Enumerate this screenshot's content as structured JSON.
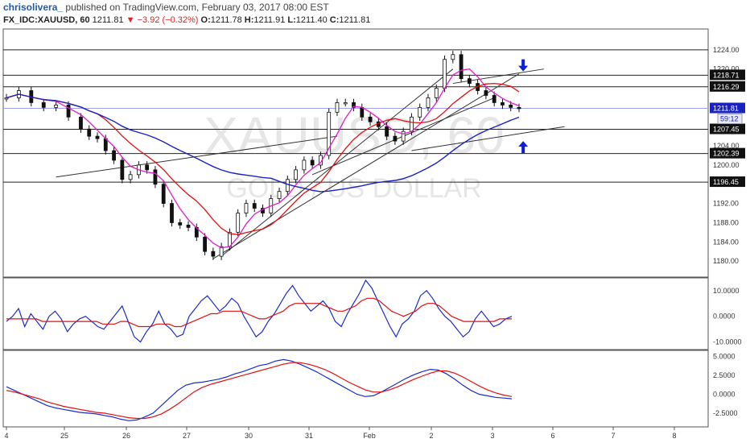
{
  "header": {
    "author": "chrisolivera_",
    "published": "published on TradingView.com, February 03, 2017 08:00 EST",
    "symbol": "FX_IDC:XAUUSD, 60",
    "last": "1211.81",
    "change_arrow": "▼",
    "change": "−3.92 (−0.32%)",
    "o_label": "O:",
    "o": "1211.78",
    "h_label": "H:",
    "h": "1211.91",
    "l_label": "L:",
    "l": "1211.40",
    "c_label": "C:",
    "c": "1211.81"
  },
  "watermark": {
    "line1": "XAUUSD, 60",
    "line2": "GOLD / US DOLLAR"
  },
  "colors": {
    "candle": "#111111",
    "ma_red": "#e01010",
    "ma_pink": "#e01cc8",
    "ma_blue": "#1a22c0",
    "arrow": "#0a1fd6",
    "last_bg": "#1a22c0",
    "timer_bg": "#e8eaf6",
    "rsi_blue": "#1b2ccc",
    "rsi_red": "#e01010"
  },
  "chart_data": [
    {
      "type": "line",
      "name": "price",
      "title": "FX_IDC:XAUUSD, 60",
      "xlabel": "",
      "ylabel": "",
      "x_ticks": [
        "4",
        "25",
        "26",
        "27",
        "30",
        "31",
        "Feb",
        "2",
        "3",
        "6",
        "7",
        "8"
      ],
      "ylim": [
        1177,
        1228
      ],
      "y_ticks": [
        "1224.00",
        "1220.00",
        "1216.00",
        "1212.00",
        "1208.00",
        "1204.00",
        "1200.00",
        "1196.00",
        "1192.00",
        "1188.00",
        "1184.00",
        "1180.00"
      ],
      "price_path": [
        [
          0,
          1214
        ],
        [
          3,
          1215.5
        ],
        [
          6,
          1213
        ],
        [
          9,
          1212
        ],
        [
          12,
          1212.5
        ],
        [
          15,
          1210
        ],
        [
          18,
          1207.5
        ],
        [
          20,
          1206
        ],
        [
          22,
          1205.5
        ],
        [
          24,
          1203
        ],
        [
          26,
          1201
        ],
        [
          28,
          1197
        ],
        [
          30,
          1198
        ],
        [
          32,
          1200
        ],
        [
          34,
          1199
        ],
        [
          36,
          1196
        ],
        [
          38,
          1192
        ],
        [
          40,
          1188
        ],
        [
          42,
          1187.5
        ],
        [
          44,
          1187
        ],
        [
          46,
          1185
        ],
        [
          48,
          1182
        ],
        [
          50,
          1181
        ],
        [
          52,
          1183
        ],
        [
          54,
          1186
        ],
        [
          56,
          1190
        ],
        [
          58,
          1192
        ],
        [
          60,
          1191
        ],
        [
          62,
          1190
        ],
        [
          64,
          1193
        ],
        [
          66,
          1194.5
        ],
        [
          68,
          1197
        ],
        [
          70,
          1199
        ],
        [
          72,
          1201
        ],
        [
          74,
          1200
        ],
        [
          76,
          1202
        ],
        [
          78,
          1211
        ],
        [
          80,
          1213
        ],
        [
          82,
          1213
        ],
        [
          84,
          1212
        ],
        [
          86,
          1210
        ],
        [
          88,
          1209
        ],
        [
          90,
          1208
        ],
        [
          92,
          1206
        ],
        [
          94,
          1205
        ],
        [
          96,
          1207
        ],
        [
          98,
          1210
        ],
        [
          100,
          1212
        ],
        [
          102,
          1214
        ],
        [
          104,
          1216
        ],
        [
          106,
          1222
        ],
        [
          108,
          1223
        ],
        [
          110,
          1218
        ],
        [
          112,
          1217
        ],
        [
          114,
          1215.5
        ],
        [
          116,
          1214.5
        ],
        [
          118,
          1213
        ],
        [
          120,
          1212.5
        ],
        [
          122,
          1212
        ],
        [
          124,
          1211.81
        ]
      ],
      "horizontal_levels": [
        "1224.00",
        "1218.71",
        "1216.29",
        "1207.45",
        "1202.39",
        "1196.45"
      ],
      "last_price": "1211.81",
      "timer": "59:12",
      "trendlines": [
        {
          "from": [
            12,
            1197.5
          ],
          "to": [
            80,
            1206
          ]
        },
        {
          "from": [
            50,
            1180.5
          ],
          "to": [
            124,
            1219
          ]
        },
        {
          "from": [
            52,
            1181
          ],
          "to": [
            108,
            1220
          ]
        },
        {
          "from": [
            74,
            1198
          ],
          "to": [
            118,
            1214
          ]
        },
        {
          "from": [
            98,
            1203
          ],
          "to": [
            135,
            1208
          ]
        },
        {
          "from": [
            108,
            1217
          ],
          "to": [
            130,
            1220
          ]
        }
      ],
      "markers": [
        {
          "name": "down-arrow",
          "at": [
            125,
            1220
          ],
          "direction": "down"
        },
        {
          "name": "up-arrow",
          "at": [
            125,
            1204.5
          ],
          "direction": "up"
        }
      ]
    },
    {
      "type": "line",
      "name": "oscillator-1",
      "ylim": [
        -12,
        14
      ],
      "y_ticks": [
        "10.0000",
        "0.0000",
        "-10.0000"
      ],
      "series": [
        {
          "color": "#1b2ccc",
          "values": [
            -2,
            0,
            3,
            -4,
            1,
            -2,
            -5,
            0,
            2,
            -1,
            -6,
            -3,
            -1,
            0,
            -2,
            -4,
            -5,
            -2,
            1,
            4,
            -2,
            -8,
            -10,
            -6,
            -3,
            2,
            -3,
            -5,
            -8,
            -7,
            0,
            3,
            6,
            8,
            5,
            2,
            4,
            7,
            5,
            0,
            -4,
            -8,
            -6,
            -2,
            1,
            5,
            9,
            12,
            8,
            5,
            2,
            4,
            6,
            3,
            -2,
            -4,
            1,
            5,
            9,
            14,
            11,
            6,
            1,
            -4,
            -8,
            -3,
            -1,
            2,
            8,
            10,
            7,
            3,
            0,
            -2,
            -5,
            -8,
            -6,
            -1,
            2,
            -1,
            -4,
            -3,
            -1,
            0
          ]
        },
        {
          "color": "#e01010",
          "values": [
            -1,
            -1,
            -1,
            -1,
            -1,
            -1,
            -2,
            -2,
            -2,
            -2,
            -2,
            -2,
            -2,
            -2,
            -2,
            -2,
            -3,
            -3,
            -3,
            -2,
            -2,
            -3,
            -4,
            -4,
            -4,
            -3,
            -3,
            -3,
            -4,
            -4,
            -3,
            -2,
            -1,
            0,
            1,
            1,
            2,
            2,
            2,
            2,
            1,
            0,
            -1,
            -1,
            0,
            1,
            2,
            4,
            5,
            5,
            5,
            5,
            5,
            4,
            3,
            2,
            2,
            3,
            4,
            6,
            7,
            7,
            6,
            4,
            2,
            1,
            0,
            1,
            2,
            4,
            5,
            5,
            4,
            2,
            0,
            -1,
            -2,
            -2,
            -2,
            -2,
            -2,
            -2,
            -1,
            -1,
            -1
          ]
        }
      ]
    },
    {
      "type": "line",
      "name": "oscillator-2",
      "ylim": [
        -4,
        5.5
      ],
      "y_ticks": [
        "5.0000",
        "2.5000",
        "0.0000",
        "-2.5000"
      ],
      "series": [
        {
          "color": "#1b2ccc",
          "values": [
            1,
            0.5,
            0,
            -0.5,
            -1,
            -1.5,
            -1.8,
            -2,
            -2.2,
            -2.4,
            -2.5,
            -2.6,
            -2.8,
            -3,
            -3.3,
            -3.5,
            -3.4,
            -3,
            -2.5,
            -1.5,
            -0.5,
            0.5,
            1.2,
            1.5,
            1.6,
            1.8,
            2,
            2.3,
            2.7,
            3,
            3.4,
            3.8,
            4,
            4.4,
            4.6,
            4.4,
            4,
            3.5,
            3,
            2.4,
            1.8,
            1.2,
            0.6,
            0,
            -0.3,
            -0.2,
            0.3,
            0.9,
            1.5,
            2.1,
            2.6,
            3,
            3.3,
            3.2,
            2.7,
            2,
            1.2,
            0.5,
            0,
            -0.2,
            -0.4,
            -0.5,
            -0.6
          ]
        },
        {
          "color": "#e01010",
          "values": [
            0.5,
            0.3,
            0,
            -0.3,
            -0.6,
            -1,
            -1.3,
            -1.6,
            -1.8,
            -2,
            -2.2,
            -2.4,
            -2.5,
            -2.7,
            -2.9,
            -3.1,
            -3.2,
            -3.2,
            -3,
            -2.6,
            -2,
            -1.3,
            -0.5,
            0.3,
            0.9,
            1.3,
            1.6,
            1.9,
            2.2,
            2.5,
            2.8,
            3.1,
            3.4,
            3.7,
            4,
            4.2,
            4.2,
            4,
            3.7,
            3.3,
            2.8,
            2.2,
            1.6,
            1.1,
            0.6,
            0.3,
            0.3,
            0.6,
            1,
            1.5,
            2,
            2.4,
            2.8,
            3.1,
            3.1,
            2.8,
            2.3,
            1.7,
            1.1,
            0.6,
            0.2,
            -0.1,
            -0.3
          ]
        }
      ]
    }
  ]
}
